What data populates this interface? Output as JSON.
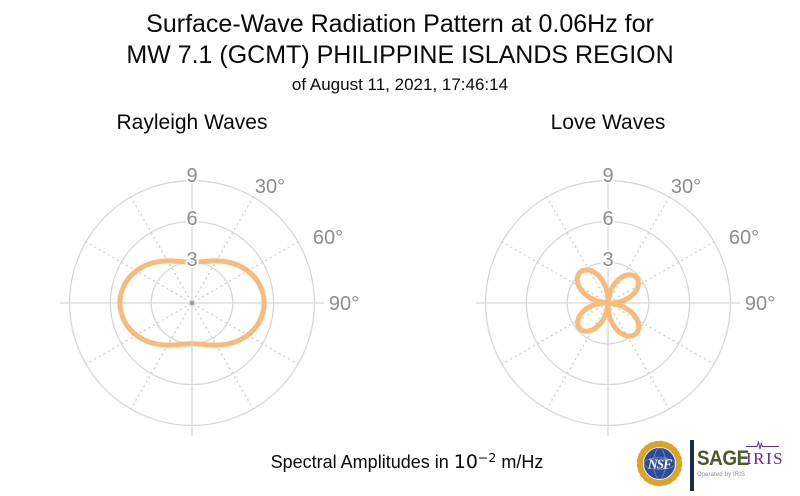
{
  "palette": {
    "accent_orange": "#F8BB79",
    "grid_gray": "#D7D7D7",
    "grid_dotted": "#CFCFCF",
    "label_gray": "#8C8C8C",
    "center_dot": "#9A9A9A",
    "sage_green": "#4A5A28",
    "iris_purple": "#5E2D91",
    "nsf_blue": "#2B4B9B",
    "nsf_gold": "#D9A42A",
    "separator_navy": "#1C2B4A"
  },
  "header": {
    "title_line1": "Surface-Wave Radiation Pattern at 0.06Hz for",
    "title_line2": "MW 7.1 (GCMT) PHILIPPINE ISLANDS REGION",
    "subtitle": "of August 11, 2021, 17:46:14"
  },
  "footer": {
    "caption": {
      "prefix": "Spectral Amplitudes in ",
      "base": "10",
      "exponent": "−2",
      "suffix": " m/Hz"
    },
    "branding": {
      "nsf": "NSF",
      "sage": "SAGE",
      "sage_tagline": "Operated by IRIS",
      "iris": "IRIS"
    }
  },
  "chart_data": [
    {
      "type": "line",
      "subtype": "polar",
      "title": "Rayleigh Waves",
      "units": "10^-2 m/Hz",
      "angle_convention": "azimuth in degrees, 0° at top, clockwise; labels shown on right half only",
      "radial_ticks": [
        3,
        6,
        9
      ],
      "radial_tick_labels": [
        "3",
        "6",
        "9"
      ],
      "radial_range": [
        0,
        9
      ],
      "angle_ticks_deg": [
        30,
        60,
        90
      ],
      "angle_tick_labels": [
        "30°",
        "60°",
        "90°"
      ],
      "grid": "light gray circles at r=3,6,9; solid vertical/horizontal spokes; dotted spokes every 30°",
      "line_color": "#F8BB79",
      "line_width": 5,
      "model": {
        "kind": "cos2",
        "formula": "r(az) = 4.15 − 1.15·cos(2·az)",
        "a": 4.15,
        "b": 1.15
      },
      "samples": {
        "azimuth_deg": [
          0,
          15,
          30,
          45,
          60,
          75,
          90,
          105,
          120,
          135,
          150,
          165,
          180,
          195,
          210,
          225,
          240,
          255,
          270,
          285,
          300,
          315,
          330,
          345
        ],
        "r": [
          3.0,
          3.15,
          3.58,
          4.15,
          4.73,
          5.15,
          5.3,
          5.15,
          4.73,
          4.15,
          3.58,
          3.15,
          3.0,
          3.15,
          3.58,
          4.15,
          4.73,
          5.15,
          5.3,
          5.15,
          4.73,
          4.15,
          3.58,
          3.15
        ]
      }
    },
    {
      "type": "line",
      "subtype": "polar",
      "title": "Love Waves",
      "units": "10^-2 m/Hz",
      "angle_convention": "azimuth in degrees, 0° at top, clockwise; labels shown on right half only",
      "radial_ticks": [
        3,
        6,
        9
      ],
      "radial_tick_labels": [
        "3",
        "6",
        "9"
      ],
      "radial_range": [
        0,
        9
      ],
      "angle_ticks_deg": [
        30,
        60,
        90
      ],
      "angle_tick_labels": [
        "30°",
        "60°",
        "90°"
      ],
      "grid": "light gray circles at r=3,6,9; solid vertical/horizontal spokes; dotted spokes every 30°",
      "line_color": "#F8BB79",
      "line_width": 5,
      "model": {
        "kind": "sin2_lobes",
        "formula": "r(az) = amp·|sin(2·(az − 3°))|, amp = 2.8 for positive-sine lobes (≈48°/228°), 3.05 for negative-sine lobes (≈138°/318°)",
        "rotation_deg": 3,
        "amp_positive_pair": 2.8,
        "amp_negative_pair": 3.05
      },
      "samples": {
        "azimuth_deg": [
          0,
          15,
          30,
          45,
          60,
          75,
          90,
          105,
          120,
          135,
          150,
          165,
          180,
          195,
          210,
          225,
          240,
          255,
          270,
          285,
          300,
          315,
          330,
          345
        ],
        "r": [
          0.32,
          1.14,
          2.27,
          2.78,
          2.56,
          1.65,
          0.29,
          1.24,
          2.47,
          3.03,
          2.79,
          1.79,
          0.32,
          1.14,
          2.27,
          2.78,
          2.56,
          1.65,
          0.29,
          1.24,
          2.47,
          3.03,
          2.79,
          1.79
        ]
      }
    }
  ]
}
